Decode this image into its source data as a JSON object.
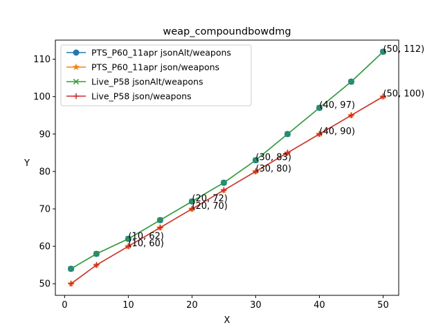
{
  "chart_data": {
    "type": "line",
    "title": "weap_compoundbowdmg",
    "xlabel": "X",
    "ylabel": "Y",
    "xlim": [
      -1.45,
      52.45
    ],
    "ylim": [
      46.9,
      115.1
    ],
    "xticks": [
      0,
      10,
      20,
      30,
      40,
      50
    ],
    "yticks": [
      50,
      60,
      70,
      80,
      90,
      100,
      110
    ],
    "grid": false,
    "legend_position": "upper-left",
    "series": [
      {
        "name": "PTS_P60_11apr jsonAlt/weapons",
        "color": "#1f77b4",
        "marker": "circle",
        "x": [
          1,
          5,
          10,
          15,
          20,
          25,
          30,
          35,
          40,
          45,
          50
        ],
        "y": [
          54,
          58,
          62,
          67,
          72,
          77,
          83,
          90,
          97,
          104,
          112
        ]
      },
      {
        "name": "PTS_P60_11apr json/weapons",
        "color": "#ff7f0e",
        "marker": "star",
        "x": [
          1,
          5,
          10,
          15,
          20,
          25,
          30,
          35,
          40,
          45,
          50
        ],
        "y": [
          50,
          55,
          60,
          65,
          70,
          75,
          80,
          85,
          90,
          95,
          100
        ]
      },
      {
        "name": "Live_P58 jsonAlt/weapons",
        "color": "#2ca02c",
        "marker": "x",
        "x": [
          1,
          5,
          10,
          15,
          20,
          25,
          30,
          35,
          40,
          45,
          50
        ],
        "y": [
          54,
          58,
          62,
          67,
          72,
          77,
          83,
          90,
          97,
          104,
          112
        ]
      },
      {
        "name": "Live_P58 json/weapons",
        "color": "#d62728",
        "marker": "plus",
        "x": [
          1,
          5,
          10,
          15,
          20,
          25,
          30,
          35,
          40,
          45,
          50
        ],
        "y": [
          50,
          55,
          60,
          65,
          70,
          75,
          80,
          85,
          90,
          95,
          100
        ]
      }
    ],
    "annotations": [
      {
        "text": "(10, 62)",
        "x": 10,
        "y": 62
      },
      {
        "text": "(20, 72)",
        "x": 20,
        "y": 72
      },
      {
        "text": "(30, 83)",
        "x": 30,
        "y": 83
      },
      {
        "text": "(40, 97)",
        "x": 40,
        "y": 97
      },
      {
        "text": "(50, 112)",
        "x": 50,
        "y": 112
      },
      {
        "text": "(10, 60)",
        "x": 10,
        "y": 60
      },
      {
        "text": "(20, 70)",
        "x": 20,
        "y": 70
      },
      {
        "text": "(30, 80)",
        "x": 30,
        "y": 80
      },
      {
        "text": "(40, 90)",
        "x": 40,
        "y": 90
      },
      {
        "text": "(50, 100)",
        "x": 50,
        "y": 100
      }
    ]
  }
}
